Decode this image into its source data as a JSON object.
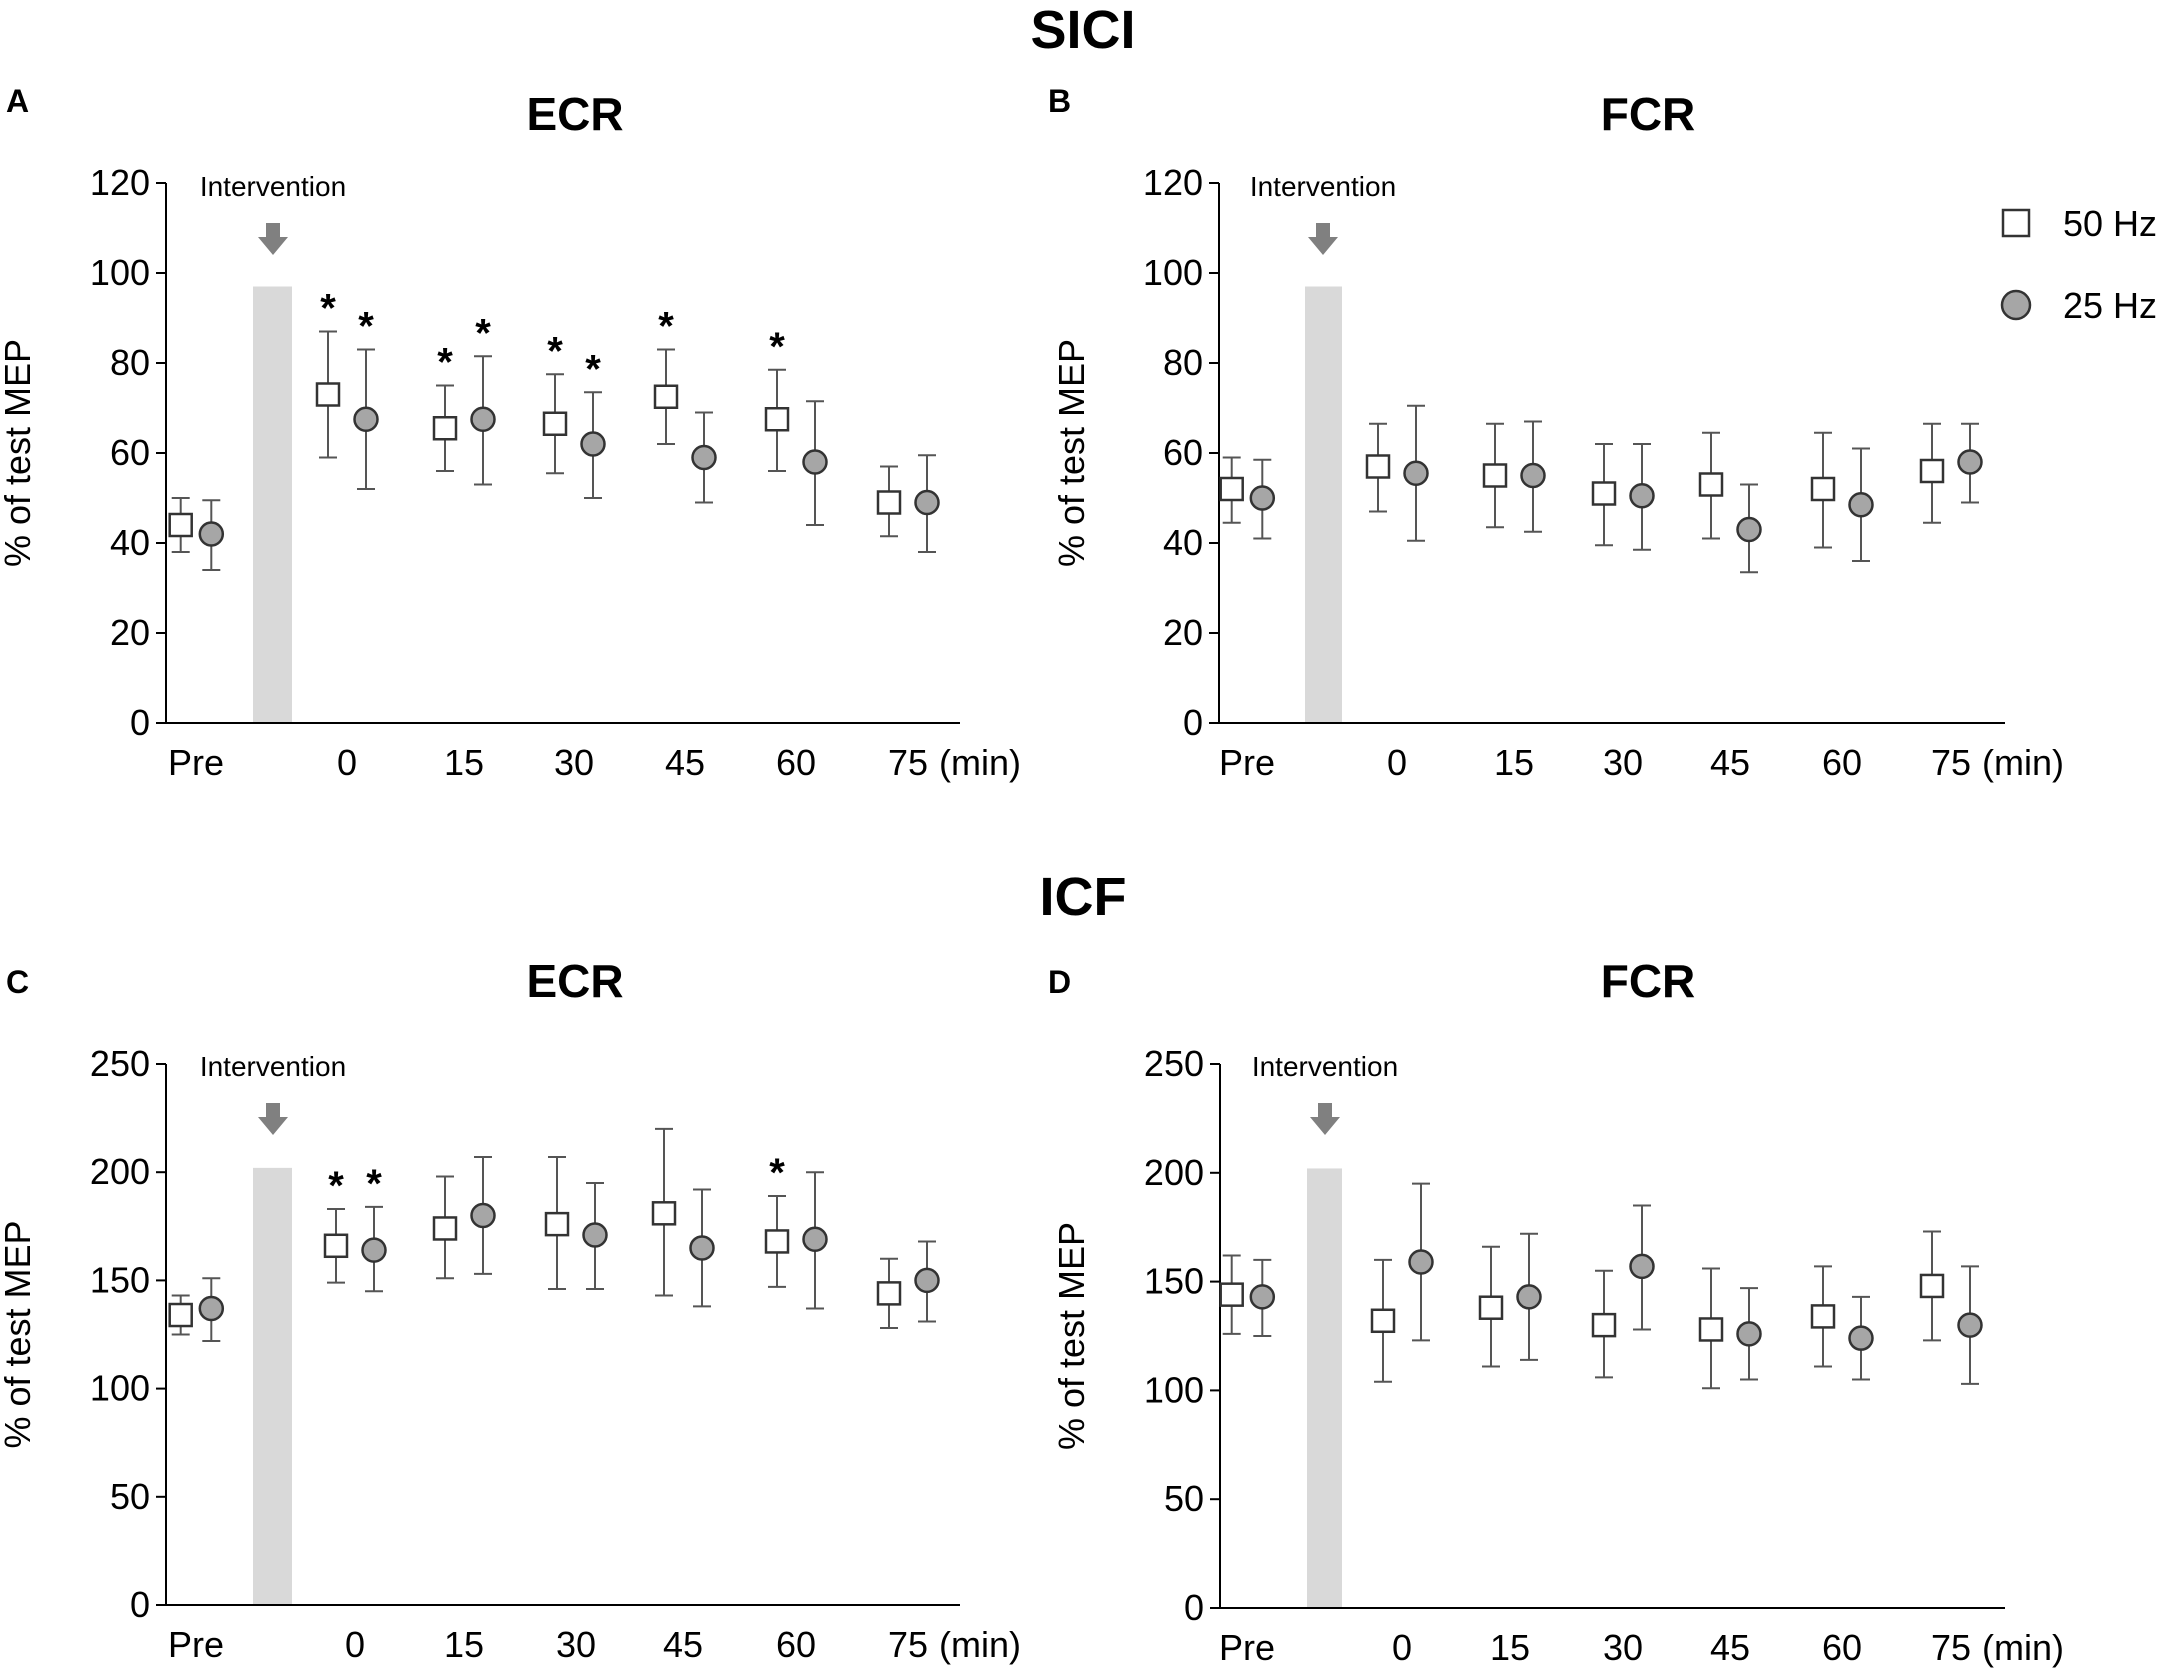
{
  "sections": {
    "top": "SICI",
    "bottom": "ICF"
  },
  "legend": {
    "items": [
      {
        "label": "50 Hz",
        "marker": "square",
        "fill": "#ffffff"
      },
      {
        "label": "25 Hz",
        "marker": "circle",
        "fill": "#a6a6a6"
      }
    ]
  },
  "colors": {
    "axis": "#000000",
    "error_bar": "#555555",
    "intervention_band": "#d9d9d9",
    "arrow": "#808080",
    "circle_fill": "#a6a6a6",
    "square_fill": "#ffffff"
  },
  "chart_data": [
    {
      "panel": "A",
      "type": "scatter",
      "title": "ECR",
      "ylabel": "% of test MEP",
      "xlabel": "",
      "ylim": [
        0,
        120
      ],
      "yticks": [
        0,
        20,
        40,
        60,
        80,
        100,
        120
      ],
      "categories": [
        "Pre",
        "0",
        "15",
        "30",
        "45",
        "60",
        "75"
      ],
      "x_unit": "(min)",
      "intervention_label": "Intervention",
      "intervention_top": 97,
      "series": [
        {
          "name": "50 Hz",
          "marker": "square",
          "values": [
            44,
            73,
            65.5,
            66.5,
            72.5,
            67.5,
            49
          ],
          "err_low": [
            38,
            59,
            56,
            55.5,
            62,
            56,
            41.5
          ],
          "err_high": [
            50,
            87,
            75,
            77.5,
            83,
            78.5,
            57
          ],
          "sig": [
            false,
            true,
            true,
            true,
            true,
            true,
            false
          ]
        },
        {
          "name": "25 Hz",
          "marker": "circle",
          "values": [
            42,
            67.5,
            67.5,
            62,
            59,
            58,
            49
          ],
          "err_low": [
            34,
            52,
            53,
            50,
            49,
            44,
            38
          ],
          "err_high": [
            49.5,
            83,
            81.5,
            73.5,
            69,
            71.5,
            59.5
          ],
          "sig": [
            false,
            true,
            true,
            true,
            false,
            false,
            false
          ]
        }
      ]
    },
    {
      "panel": "B",
      "type": "scatter",
      "title": "FCR",
      "ylabel": "% of test MEP",
      "xlabel": "",
      "ylim": [
        0,
        120
      ],
      "yticks": [
        0,
        20,
        40,
        60,
        80,
        100,
        120
      ],
      "categories": [
        "Pre",
        "0",
        "15",
        "30",
        "45",
        "60",
        "75"
      ],
      "x_unit": "(min)",
      "intervention_label": "Intervention",
      "intervention_top": 97,
      "series": [
        {
          "name": "50 Hz",
          "marker": "square",
          "values": [
            52,
            57,
            55,
            51,
            53,
            52,
            56
          ],
          "err_low": [
            44.5,
            47,
            43.5,
            39.5,
            41,
            39,
            44.5
          ],
          "err_high": [
            59,
            66.5,
            66.5,
            62,
            64.5,
            64.5,
            66.5
          ],
          "sig": [
            false,
            false,
            false,
            false,
            false,
            false,
            false
          ]
        },
        {
          "name": "25 Hz",
          "marker": "circle",
          "values": [
            50,
            55.5,
            55,
            50.5,
            43,
            48.5,
            58
          ],
          "err_low": [
            41,
            40.5,
            42.5,
            38.5,
            33.5,
            36,
            49
          ],
          "err_high": [
            58.5,
            70.5,
            67,
            62,
            53,
            61,
            66.5
          ],
          "sig": [
            false,
            false,
            false,
            false,
            false,
            false,
            false
          ]
        }
      ]
    },
    {
      "panel": "C",
      "type": "scatter",
      "title": "ECR",
      "ylabel": "% of test MEP",
      "xlabel": "",
      "ylim": [
        0,
        250
      ],
      "yticks": [
        0,
        50,
        100,
        150,
        200,
        250
      ],
      "categories": [
        "Pre",
        "0",
        "15",
        "30",
        "45",
        "60",
        "75"
      ],
      "x_unit": "(min)",
      "intervention_label": "Intervention",
      "intervention_top": 202,
      "series": [
        {
          "name": "50 Hz",
          "marker": "square",
          "values": [
            134,
            166,
            174,
            176,
            181,
            168,
            144
          ],
          "err_low": [
            125,
            149,
            151,
            146,
            143,
            147,
            128
          ],
          "err_high": [
            143,
            183,
            198,
            207,
            220,
            189,
            160
          ],
          "sig": [
            false,
            true,
            false,
            false,
            false,
            true,
            false
          ]
        },
        {
          "name": "25 Hz",
          "marker": "circle",
          "values": [
            137,
            164,
            180,
            171,
            165,
            169,
            150
          ],
          "err_low": [
            122,
            145,
            153,
            146,
            138,
            137,
            131
          ],
          "err_high": [
            151,
            184,
            207,
            195,
            192,
            200,
            168
          ],
          "sig": [
            false,
            true,
            false,
            false,
            false,
            false,
            false
          ]
        }
      ]
    },
    {
      "panel": "D",
      "type": "scatter",
      "title": "FCR",
      "ylabel": "% of test MEP",
      "xlabel": "",
      "ylim": [
        0,
        250
      ],
      "yticks": [
        0,
        50,
        100,
        150,
        200,
        250
      ],
      "categories": [
        "Pre",
        "0",
        "15",
        "30",
        "45",
        "60",
        "75"
      ],
      "x_unit": "(min)",
      "intervention_label": "Intervention",
      "intervention_top": 202,
      "series": [
        {
          "name": "50 Hz",
          "marker": "square",
          "values": [
            144,
            132,
            138,
            130,
            128,
            134,
            148
          ],
          "err_low": [
            126,
            104,
            111,
            106,
            101,
            111,
            123
          ],
          "err_high": [
            162,
            160,
            166,
            155,
            156,
            157,
            173
          ],
          "sig": [
            false,
            false,
            false,
            false,
            false,
            false,
            false
          ]
        },
        {
          "name": "25 Hz",
          "marker": "circle",
          "values": [
            143,
            159,
            143,
            157,
            126,
            124,
            130
          ],
          "err_low": [
            125,
            123,
            114,
            128,
            105,
            105,
            103
          ],
          "err_high": [
            160,
            195,
            172,
            185,
            147,
            143,
            157
          ],
          "sig": [
            false,
            false,
            false,
            false,
            false,
            false,
            false
          ]
        }
      ]
    }
  ]
}
